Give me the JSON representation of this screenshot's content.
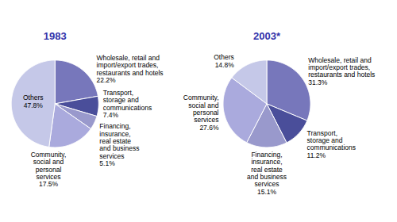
{
  "chart_data": [
    {
      "type": "pie",
      "title": "1983",
      "categories": [
        "Wholesale, retail and\nimport/export trades,\nrestaurants and hotels",
        "Transport,\nstorage and\ncommunications",
        "Financing,\ninsurance,\nreal estate\nand business\nservices",
        "Community,\nsocial and\npersonal\nservices",
        "Others"
      ],
      "values": [
        22.2,
        7.4,
        5.1,
        17.5,
        47.8
      ],
      "value_labels": [
        "22.2%",
        "7.4%",
        "5.1%",
        "17.5%",
        "47.8%"
      ],
      "colors": [
        "#7777bb",
        "#4a4e9a",
        "#9999cc",
        "#aaaadd",
        "#c5c8e8"
      ],
      "data_labels": true
    },
    {
      "type": "pie",
      "title": "2003*",
      "categories": [
        "Wholesale, retail and\nimport/export trades,\nrestaurants and hotels",
        "Transport,\nstorage and\ncommunications",
        "Financing,\ninsurance,\nreal estate\nand business\nservices",
        "Community,\nsocial and\npersonal\nservices",
        "Others"
      ],
      "values": [
        31.3,
        11.2,
        15.1,
        27.6,
        14.8
      ],
      "value_labels": [
        "31.3%",
        "11.2%",
        "15.1%",
        "27.6%",
        "14.8%"
      ],
      "colors": [
        "#7777bb",
        "#4a4e9a",
        "#9999cc",
        "#aaaadd",
        "#c5c8e8"
      ],
      "data_labels": true
    }
  ]
}
